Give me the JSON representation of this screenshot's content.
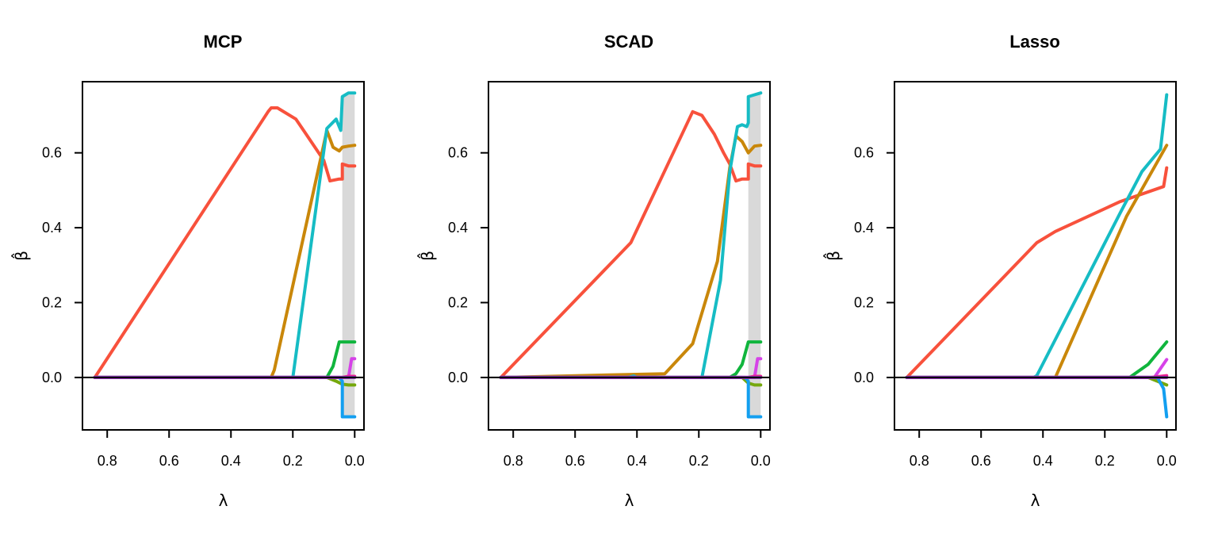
{
  "chart_data": [
    {
      "type": "line",
      "title": "MCP",
      "xlabel": "λ",
      "ylabel": "β̂",
      "xlim": [
        0.88,
        -0.03
      ],
      "ylim": [
        -0.14,
        0.79
      ],
      "xticks": [
        "0.8",
        "0.6",
        "0.4",
        "0.2",
        "0.0"
      ],
      "xtick_values": [
        0.8,
        0.6,
        0.4,
        0.2,
        0.0
      ],
      "yticks": [
        "0.0",
        "0.2",
        "0.4",
        "0.6"
      ],
      "ytick_values": [
        0.0,
        0.2,
        0.4,
        0.6
      ],
      "shaded_region": [
        0.04,
        0.0
      ],
      "shade_color": "#d9d9d9",
      "zero_line": true,
      "series": [
        {
          "color": "#f8513c",
          "x": [
            0.84,
            0.28,
            0.27,
            0.25,
            0.19,
            0.1,
            0.08,
            0.05,
            0.04,
            0.04,
            0.02,
            0.0
          ],
          "y": [
            0.0,
            0.71,
            0.72,
            0.72,
            0.69,
            0.58,
            0.525,
            0.53,
            0.53,
            0.57,
            0.565,
            0.565
          ]
        },
        {
          "color": "#c9870a",
          "x": [
            0.84,
            0.27,
            0.26,
            0.09,
            0.07,
            0.05,
            0.04,
            0.02,
            0.0
          ],
          "y": [
            0.0,
            0.0,
            0.02,
            0.66,
            0.615,
            0.605,
            0.615,
            0.618,
            0.62
          ]
        },
        {
          "color": "#16bcc4",
          "x": [
            0.84,
            0.2,
            0.09,
            0.06,
            0.045,
            0.04,
            0.04,
            0.02,
            0.0
          ],
          "y": [
            0.0,
            0.0,
            0.665,
            0.69,
            0.66,
            0.75,
            0.75,
            0.76,
            0.76
          ]
        },
        {
          "color": "#10b53d",
          "x": [
            0.84,
            0.09,
            0.07,
            0.05,
            0.02,
            0.0
          ],
          "y": [
            0.0,
            0.0,
            0.03,
            0.095,
            0.095,
            0.095
          ]
        },
        {
          "color": "#75a80c",
          "x": [
            0.84,
            0.09,
            0.06,
            0.04,
            0.02,
            0.0
          ],
          "y": [
            0.0,
            0.0,
            -0.01,
            -0.018,
            -0.02,
            -0.02
          ]
        },
        {
          "color": "#139ff0",
          "x": [
            0.84,
            0.05,
            0.04,
            0.04,
            0.02,
            0.0
          ],
          "y": [
            0.0,
            0.0,
            -0.01,
            -0.105,
            -0.105,
            -0.105
          ]
        },
        {
          "color": "#d642e8",
          "x": [
            0.84,
            0.02,
            0.01,
            0.0
          ],
          "y": [
            0.0,
            0.0,
            0.05,
            0.05
          ]
        },
        {
          "color": "#f0208c",
          "x": [
            0.84,
            0.04,
            0.02,
            0.0
          ],
          "y": [
            0.0,
            0.0,
            0.003,
            0.003
          ]
        },
        {
          "color": "#8a3ab8",
          "x": [
            0.84,
            0.0
          ],
          "y": [
            0.0,
            0.0
          ]
        }
      ]
    },
    {
      "type": "line",
      "title": "SCAD",
      "xlabel": "λ",
      "ylabel": "β̂",
      "xlim": [
        0.88,
        -0.03
      ],
      "ylim": [
        -0.14,
        0.79
      ],
      "xticks": [
        "0.8",
        "0.6",
        "0.4",
        "0.2",
        "0.0"
      ],
      "xtick_values": [
        0.8,
        0.6,
        0.4,
        0.2,
        0.0
      ],
      "yticks": [
        "0.0",
        "0.2",
        "0.4",
        "0.6"
      ],
      "ytick_values": [
        0.0,
        0.2,
        0.4,
        0.6
      ],
      "shaded_region": [
        0.04,
        0.0
      ],
      "shade_color": "#d9d9d9",
      "zero_line": true,
      "series": [
        {
          "color": "#f8513c",
          "x": [
            0.84,
            0.42,
            0.22,
            0.19,
            0.15,
            0.12,
            0.1,
            0.08,
            0.06,
            0.04,
            0.04,
            0.02,
            0.0
          ],
          "y": [
            0.0,
            0.36,
            0.71,
            0.7,
            0.65,
            0.6,
            0.57,
            0.525,
            0.53,
            0.53,
            0.57,
            0.565,
            0.565
          ]
        },
        {
          "color": "#c9870a",
          "x": [
            0.84,
            0.31,
            0.22,
            0.14,
            0.1,
            0.08,
            0.06,
            0.04,
            0.02,
            0.0
          ],
          "y": [
            0.0,
            0.01,
            0.09,
            0.31,
            0.56,
            0.645,
            0.63,
            0.6,
            0.618,
            0.62
          ]
        },
        {
          "color": "#16bcc4",
          "x": [
            0.84,
            0.43,
            0.41,
            0.4,
            0.19,
            0.13,
            0.1,
            0.075,
            0.06,
            0.045,
            0.04,
            0.04,
            0.02,
            0.0
          ],
          "y": [
            0.0,
            0.0,
            0.004,
            0.0,
            0.0,
            0.26,
            0.55,
            0.67,
            0.675,
            0.67,
            0.68,
            0.75,
            0.755,
            0.76
          ]
        },
        {
          "color": "#10b53d",
          "x": [
            0.84,
            0.1,
            0.08,
            0.06,
            0.04,
            0.02,
            0.0
          ],
          "y": [
            0.0,
            0.0,
            0.01,
            0.035,
            0.095,
            0.095,
            0.095
          ]
        },
        {
          "color": "#75a80c",
          "x": [
            0.84,
            0.06,
            0.04,
            0.02,
            0.0
          ],
          "y": [
            0.0,
            0.0,
            -0.015,
            -0.02,
            -0.02
          ]
        },
        {
          "color": "#139ff0",
          "x": [
            0.84,
            0.05,
            0.04,
            0.04,
            0.02,
            0.0
          ],
          "y": [
            0.0,
            0.0,
            -0.01,
            -0.105,
            -0.105,
            -0.105
          ]
        },
        {
          "color": "#d642e8",
          "x": [
            0.84,
            0.02,
            0.01,
            0.0
          ],
          "y": [
            0.0,
            0.0,
            0.05,
            0.05
          ]
        },
        {
          "color": "#f0208c",
          "x": [
            0.84,
            0.04,
            0.02,
            0.0
          ],
          "y": [
            0.0,
            0.0,
            0.003,
            0.003
          ]
        },
        {
          "color": "#8a3ab8",
          "x": [
            0.84,
            0.0
          ],
          "y": [
            0.0,
            0.0
          ]
        }
      ]
    },
    {
      "type": "line",
      "title": "Lasso",
      "xlabel": "λ",
      "ylabel": "β̂",
      "xlim": [
        0.88,
        -0.03
      ],
      "ylim": [
        -0.14,
        0.79
      ],
      "xticks": [
        "0.8",
        "0.6",
        "0.4",
        "0.2",
        "0.0"
      ],
      "xtick_values": [
        0.8,
        0.6,
        0.4,
        0.2,
        0.0
      ],
      "yticks": [
        "0.0",
        "0.2",
        "0.4",
        "0.6"
      ],
      "ytick_values": [
        0.0,
        0.2,
        0.4,
        0.6
      ],
      "shaded_region": null,
      "zero_line": true,
      "series": [
        {
          "color": "#f8513c",
          "x": [
            0.84,
            0.42,
            0.36,
            0.15,
            0.01,
            0.0
          ],
          "y": [
            0.0,
            0.36,
            0.39,
            0.47,
            0.51,
            0.56
          ]
        },
        {
          "color": "#c9870a",
          "x": [
            0.84,
            0.36,
            0.13,
            0.0
          ],
          "y": [
            0.0,
            0.0,
            0.43,
            0.62
          ]
        },
        {
          "color": "#16bcc4",
          "x": [
            0.84,
            0.43,
            0.42,
            0.15,
            0.08,
            0.02,
            0.0
          ],
          "y": [
            0.0,
            0.0,
            0.005,
            0.44,
            0.55,
            0.61,
            0.755
          ]
        },
        {
          "color": "#10b53d",
          "x": [
            0.84,
            0.12,
            0.06,
            0.0
          ],
          "y": [
            0.0,
            0.0,
            0.035,
            0.095
          ]
        },
        {
          "color": "#75a80c",
          "x": [
            0.84,
            0.06,
            0.0
          ],
          "y": [
            0.0,
            0.0,
            -0.02
          ]
        },
        {
          "color": "#139ff0",
          "x": [
            0.84,
            0.03,
            0.01,
            0.0
          ],
          "y": [
            0.0,
            0.0,
            -0.03,
            -0.105
          ]
        },
        {
          "color": "#d642e8",
          "x": [
            0.84,
            0.04,
            0.0
          ],
          "y": [
            0.0,
            0.0,
            0.048
          ]
        },
        {
          "color": "#f0208c",
          "x": [
            0.84,
            0.05,
            0.0
          ],
          "y": [
            0.0,
            0.0,
            0.005
          ]
        },
        {
          "color": "#8a3ab8",
          "x": [
            0.84,
            0.0
          ],
          "y": [
            0.0,
            0.0
          ]
        }
      ]
    }
  ]
}
